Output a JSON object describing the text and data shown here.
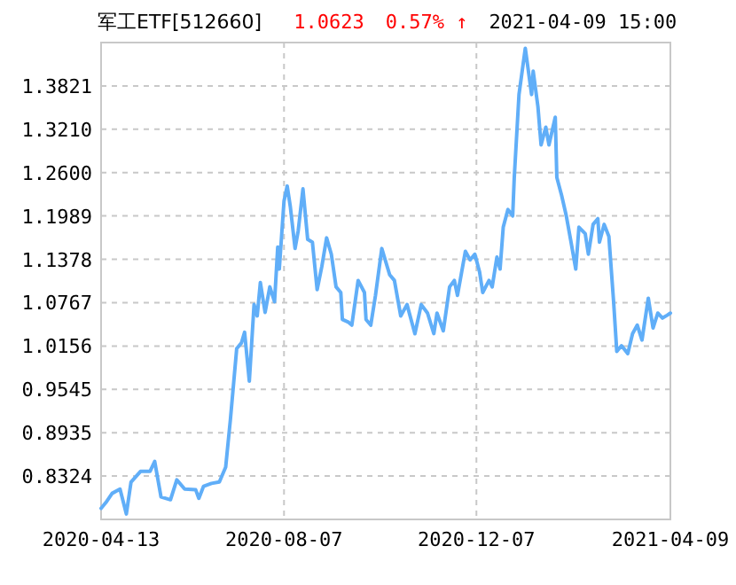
{
  "chart_data": {
    "type": "line",
    "title": "军工ETF[512660]",
    "annotations": [
      "1.0623",
      "0.57% ↑",
      "2021-04-09 15:00"
    ],
    "xlim": [
      "2020-04-13",
      "2021-04-09"
    ],
    "xticks": [
      "2020-04-13",
      "2020-08-07",
      "2020-12-07",
      "2021-04-09"
    ],
    "ylim": [
      0.7713,
      1.4432
    ],
    "yticks": [
      0.8324,
      0.8935,
      0.9545,
      1.0156,
      1.0767,
      1.1378,
      1.1989,
      {
        "value": 1.26,
        "label": "1.2600"
      },
      {
        "value": 1.321,
        "label": "1.3210"
      },
      1.3821
    ],
    "grid": true,
    "marker": "none",
    "line_style": "solid",
    "series": [
      {
        "color": "#60aef8",
        "x": [
          "2020-04-13",
          "2020-04-16",
          "2020-04-20",
          "2020-04-25",
          "2020-04-29",
          "2020-05-02",
          "2020-05-08",
          "2020-05-14",
          "2020-05-17",
          "2020-05-21",
          "2020-05-27",
          "2020-05-31",
          "2020-06-05",
          "2020-06-12",
          "2020-06-14",
          "2020-06-17",
          "2020-06-22",
          "2020-06-27",
          "2020-07-01",
          "2020-07-04",
          "2020-07-08",
          "2020-07-11",
          "2020-07-13",
          "2020-07-16",
          "2020-07-19",
          "2020-07-21",
          "2020-07-23",
          "2020-07-26",
          "2020-07-29",
          "2020-08-01",
          "2020-08-03",
          "2020-08-04",
          "2020-08-07",
          "2020-08-09",
          "2020-08-11",
          "2020-08-14",
          "2020-08-16",
          "2020-08-19",
          "2020-08-22",
          "2020-08-25",
          "2020-08-28",
          "2020-08-31",
          "2020-09-03",
          "2020-09-06",
          "2020-09-09",
          "2020-09-12",
          "2020-09-13",
          "2020-09-17",
          "2020-09-19",
          "2020-09-23",
          "2020-09-27",
          "2020-09-28",
          "2020-10-01",
          "2020-10-04",
          "2020-10-08",
          "2020-10-13",
          "2020-10-16",
          "2020-10-20",
          "2020-10-24",
          "2020-10-29",
          "2020-11-02",
          "2020-11-06",
          "2020-11-10",
          "2020-11-12",
          "2020-11-16",
          "2020-11-20",
          "2020-11-23",
          "2020-11-25",
          "2020-11-30",
          "2020-12-03",
          "2020-12-06",
          "2020-12-09",
          "2020-12-11",
          "2020-12-15",
          "2020-12-17",
          "2020-12-20",
          "2020-12-22",
          "2020-12-24",
          "2020-12-27",
          "2020-12-30",
          "2020-12-31",
          "2021-01-03",
          "2021-01-07",
          "2021-01-11",
          "2021-01-12",
          "2021-01-15",
          "2021-01-17",
          "2021-01-20",
          "2021-01-22",
          "2021-01-26",
          "2021-01-27",
          "2021-01-30",
          "2021-02-02",
          "2021-02-05",
          "2021-02-08",
          "2021-02-10",
          "2021-02-14",
          "2021-02-16",
          "2021-02-19",
          "2021-02-22",
          "2021-02-23",
          "2021-02-26",
          "2021-03-01",
          "2021-03-04",
          "2021-03-06",
          "2021-03-09",
          "2021-03-13",
          "2021-03-16",
          "2021-03-19",
          "2021-03-22",
          "2021-03-26",
          "2021-03-29",
          "2021-04-01",
          "2021-04-04",
          "2021-04-07",
          "2021-04-09"
        ],
        "values": [
          0.787,
          0.795,
          0.808,
          0.814,
          0.779,
          0.824,
          0.839,
          0.839,
          0.853,
          0.803,
          0.799,
          0.827,
          0.814,
          0.813,
          0.801,
          0.818,
          0.822,
          0.824,
          0.845,
          0.912,
          1.012,
          1.02,
          1.035,
          0.966,
          1.074,
          1.058,
          1.105,
          1.063,
          1.099,
          1.078,
          1.155,
          1.124,
          1.22,
          1.241,
          1.212,
          1.153,
          1.178,
          1.237,
          1.166,
          1.162,
          1.095,
          1.128,
          1.168,
          1.145,
          1.099,
          1.091,
          1.053,
          1.049,
          1.045,
          1.108,
          1.091,
          1.053,
          1.045,
          1.087,
          1.153,
          1.116,
          1.108,
          1.058,
          1.074,
          1.033,
          1.074,
          1.062,
          1.033,
          1.062,
          1.037,
          1.099,
          1.108,
          1.087,
          1.149,
          1.137,
          1.145,
          1.12,
          1.091,
          1.108,
          1.099,
          1.141,
          1.124,
          1.183,
          1.208,
          1.199,
          1.253,
          1.37,
          1.435,
          1.37,
          1.403,
          1.353,
          1.299,
          1.324,
          1.299,
          1.338,
          1.253,
          1.228,
          1.199,
          1.162,
          1.124,
          1.183,
          1.174,
          1.145,
          1.187,
          1.195,
          1.162,
          1.187,
          1.17,
          1.078,
          1.008,
          1.016,
          1.005,
          1.033,
          1.045,
          1.024,
          1.083,
          1.041,
          1.062,
          1.055,
          1.059,
          1.062
        ]
      }
    ]
  }
}
